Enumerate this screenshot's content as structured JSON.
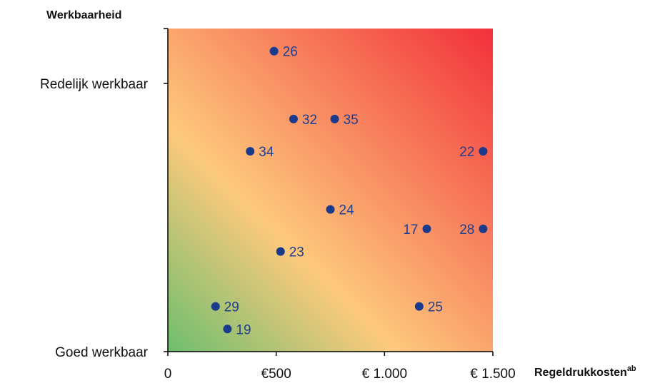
{
  "chart_data": {
    "type": "scatter",
    "ylabel": "Werkbaarheid",
    "xlabel": "Regeldrukkosten",
    "xlabel_superscript": "ab",
    "xlim": [
      0,
      1500
    ],
    "xticks": [
      {
        "value": 0,
        "label": "0"
      },
      {
        "value": 500,
        "label": "€500"
      },
      {
        "value": 1000,
        "label": "€ 1.000"
      },
      {
        "value": 1500,
        "label": "€ 1.500"
      }
    ],
    "ylim": [
      0,
      1
    ],
    "yticks": [
      {
        "value": 0,
        "label": "Goed werkbaar"
      },
      {
        "value": 0.83,
        "label": "Redelijk werkbaar"
      }
    ],
    "background_gradient": {
      "low": "#6dbe6e",
      "mid": "#fdc97c",
      "high": "#f2303a"
    },
    "marker_color": "#1a3a8c",
    "points": [
      {
        "label": "26",
        "x": 490,
        "y": 0.93,
        "label_side": "right"
      },
      {
        "label": "32",
        "x": 580,
        "y": 0.72,
        "label_side": "right"
      },
      {
        "label": "35",
        "x": 770,
        "y": 0.72,
        "label_side": "right"
      },
      {
        "label": "34",
        "x": 380,
        "y": 0.62,
        "label_side": "right"
      },
      {
        "label": "22",
        "x": 1455,
        "y": 0.62,
        "label_side": "left"
      },
      {
        "label": "24",
        "x": 750,
        "y": 0.44,
        "label_side": "right"
      },
      {
        "label": "17",
        "x": 1195,
        "y": 0.38,
        "label_side": "left"
      },
      {
        "label": "28",
        "x": 1455,
        "y": 0.38,
        "label_side": "left"
      },
      {
        "label": "23",
        "x": 520,
        "y": 0.31,
        "label_side": "right"
      },
      {
        "label": "29",
        "x": 220,
        "y": 0.14,
        "label_side": "right"
      },
      {
        "label": "25",
        "x": 1160,
        "y": 0.14,
        "label_side": "right"
      },
      {
        "label": "19",
        "x": 275,
        "y": 0.07,
        "label_side": "right"
      }
    ]
  }
}
